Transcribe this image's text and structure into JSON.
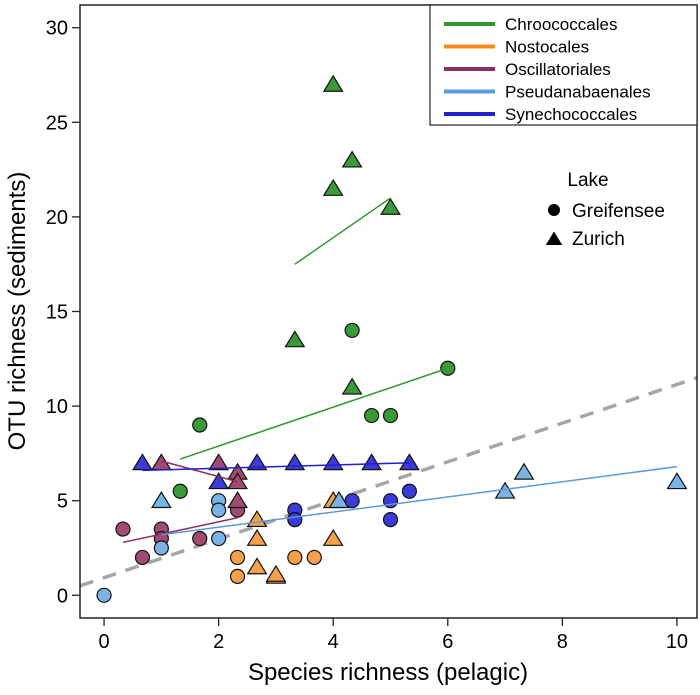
{
  "chart_data": {
    "type": "scatter",
    "xlabel": "Species richness (pelagic)",
    "ylabel": "OTU richness (sediments)",
    "xlim": [
      -0.42,
      10.35
    ],
    "ylim": [
      -1.2,
      31.2
    ],
    "xticks": [
      0,
      2,
      4,
      6,
      8,
      10
    ],
    "yticks": [
      0,
      5,
      10,
      15,
      20,
      25,
      30
    ],
    "grid": false,
    "legend_placement": "top-right",
    "legend_title_shape": "Lake",
    "shapes": [
      {
        "name": "Greifensee",
        "marker": "circle"
      },
      {
        "name": "Zurich",
        "marker": "triangle"
      }
    ],
    "reference_line": {
      "style": "dashed",
      "color": "#a6a6a6",
      "from": [
        -0.42,
        0.5
      ],
      "to": [
        10.35,
        11.5
      ]
    },
    "series": [
      {
        "name": "Chroococcales",
        "color": "#3a9a3a",
        "line_color": "#2e9a2e",
        "Greifensee": [
          [
            4.33,
            14
          ],
          [
            6,
            12
          ],
          [
            4.67,
            9.5
          ],
          [
            5,
            9.5
          ],
          [
            1.67,
            9
          ],
          [
            1.33,
            5.5
          ]
        ],
        "Zurich": [
          [
            4,
            27
          ],
          [
            4.33,
            23
          ],
          [
            4,
            21.5
          ],
          [
            5,
            20.5
          ],
          [
            3.33,
            13.5
          ],
          [
            4.33,
            11
          ]
        ],
        "trend_Greifensee": [
          [
            1.33,
            7.2
          ],
          [
            6,
            12
          ]
        ],
        "trend_Zurich": [
          [
            3.33,
            17.5
          ],
          [
            5,
            21
          ]
        ]
      },
      {
        "name": "Nostocales",
        "color": "#f5a04a",
        "line_color": "#f58b1f",
        "Greifensee": [
          [
            2.33,
            2
          ],
          [
            2.33,
            1
          ],
          [
            3.33,
            2
          ],
          [
            3.67,
            2
          ]
        ],
        "Zurich": [
          [
            2.67,
            4
          ],
          [
            2.67,
            3
          ],
          [
            2.67,
            1.5
          ],
          [
            3,
            1
          ],
          [
            3,
            1.1
          ],
          [
            4,
            3
          ],
          [
            4,
            5
          ]
        ],
        "trend_Greifensee": null,
        "trend_Zurich": null
      },
      {
        "name": "Oscillatoriales",
        "color": "#a14a72",
        "line_color": "#8e2e5e",
        "Greifensee": [
          [
            0.33,
            3.5
          ],
          [
            1,
            3.5
          ],
          [
            1,
            3
          ],
          [
            0.67,
            2
          ],
          [
            1.67,
            3
          ],
          [
            2.33,
            4.5
          ]
        ],
        "Zurich": [
          [
            1,
            7
          ],
          [
            2,
            7
          ],
          [
            2.33,
            6.5
          ],
          [
            2.33,
            6
          ],
          [
            2.33,
            5
          ]
        ],
        "trend_Greifensee": [
          [
            0.33,
            2.8
          ],
          [
            2.33,
            4.1
          ]
        ],
        "trend_Zurich": [
          [
            1,
            7.1
          ],
          [
            2.33,
            6
          ]
        ]
      },
      {
        "name": "Pseudanabaenales",
        "color": "#7ab4e4",
        "line_color": "#5a9ad8",
        "Greifensee": [
          [
            0,
            0
          ],
          [
            1,
            2.5
          ],
          [
            2,
            5
          ],
          [
            2,
            4.5
          ],
          [
            2,
            3
          ]
        ],
        "Zurich": [
          [
            1,
            5
          ],
          [
            4.1,
            5
          ],
          [
            7,
            5.5
          ],
          [
            7.33,
            6.5
          ],
          [
            10,
            6
          ]
        ],
        "trend_Greifensee": null,
        "trend_Zurich": [
          [
            1,
            3.2
          ],
          [
            10,
            6.8
          ]
        ]
      },
      {
        "name": "Synechococcales",
        "color": "#3b3bd9",
        "line_color": "#2020c8",
        "Greifensee": [
          [
            3.33,
            4.5
          ],
          [
            3.33,
            4
          ],
          [
            4.33,
            5
          ],
          [
            5,
            5
          ],
          [
            5,
            4
          ],
          [
            5.33,
            5.5
          ]
        ],
        "Zurich": [
          [
            0.67,
            7
          ],
          [
            2,
            6
          ],
          [
            2.67,
            7
          ],
          [
            3.33,
            7
          ],
          [
            4,
            7
          ],
          [
            4.67,
            7
          ],
          [
            5.33,
            7
          ]
        ],
        "trend_Greifensee": null,
        "trend_Zurich": [
          [
            0.67,
            6.6
          ],
          [
            5.33,
            7
          ]
        ]
      }
    ]
  }
}
